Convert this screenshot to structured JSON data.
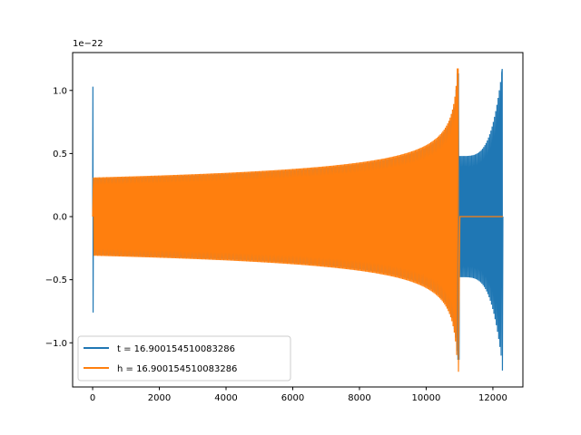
{
  "chart_data": {
    "type": "line",
    "title": "",
    "xlabel": "",
    "ylabel": "",
    "y_offset_label": "1e−22",
    "xlim": [
      -600,
      12900
    ],
    "ylim": [
      -1.35,
      1.3
    ],
    "xticks": [
      0,
      2000,
      4000,
      6000,
      8000,
      10000,
      12000
    ],
    "xtick_labels": [
      "0",
      "2000",
      "4000",
      "6000",
      "8000",
      "10000",
      "12000"
    ],
    "yticks": [
      -1.0,
      -0.5,
      0.0,
      0.5,
      1.0
    ],
    "ytick_labels": [
      "−1.0",
      "−0.5",
      "0.0",
      "0.5",
      "1.0"
    ],
    "grid": false,
    "legend_position": "lower-left",
    "series": [
      {
        "name": "t = 16.900154510083286",
        "color": "#1f77b4",
        "description_points": {
          "start_x": 0,
          "start_spike_max": 1.03,
          "start_spike_min": -0.76,
          "initial_amplitude": 0.3,
          "amplitude_at_11000": 0.48,
          "peak_x": 12280,
          "peak_max": 1.17,
          "peak_min": -1.22,
          "end_x": 12300,
          "end_value": 0.0
        }
      },
      {
        "name": "h = 16.900154510083286",
        "color": "#ff7f0e",
        "description_points": {
          "start_x": 0,
          "initial_amplitude": 0.31,
          "amplitude_at_6000": 0.37,
          "amplitude_at_9000": 0.5,
          "peak_x": 10960,
          "peak_max": 1.17,
          "peak_min": -1.23,
          "flat_from_x": 11010,
          "end_x": 12300,
          "flat_value": 0.0
        }
      }
    ]
  }
}
